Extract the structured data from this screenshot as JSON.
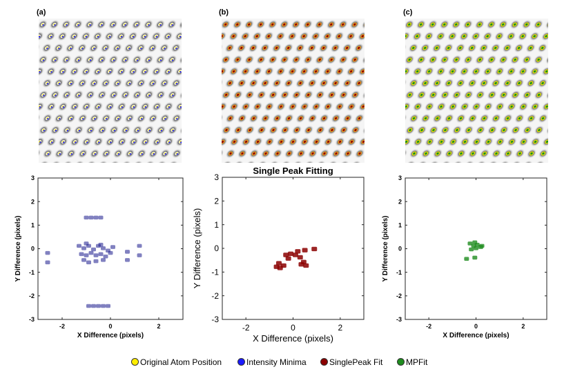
{
  "panels": {
    "a": {
      "label": "(a)"
    },
    "b": {
      "label": "(b)"
    },
    "c": {
      "label": "(c)"
    }
  },
  "legend": {
    "items": [
      {
        "label": "Original Atom Position",
        "color": "#ffee00"
      },
      {
        "label": "Intensity Minima",
        "color": "#1a1aff"
      },
      {
        "label": "SinglePeak Fit",
        "color": "#8b0000"
      },
      {
        "label": "MPFit",
        "color": "#1e8c1e"
      }
    ]
  },
  "chart_data": [
    {
      "type": "scatter",
      "panel": "a",
      "title": "",
      "xlabel": "X Difference (pixels)",
      "ylabel": "Y Difference (pixels)",
      "xlim": [
        -3,
        3
      ],
      "ylim": [
        -3,
        3
      ],
      "xticks": [
        "-2",
        "0",
        "2"
      ],
      "yticks": [
        "3",
        "2",
        "1",
        "0",
        "-1",
        "-2",
        "-3"
      ],
      "color": "#1a1a8c",
      "series": [
        {
          "name": "Intensity Minima",
          "points": [
            [
              -1.3,
              0.1
            ],
            [
              -1.1,
              0.0
            ],
            [
              -0.9,
              0.1
            ],
            [
              -0.7,
              -0.05
            ],
            [
              -0.5,
              0.1
            ],
            [
              -0.3,
              0.0
            ],
            [
              -0.1,
              -0.1
            ],
            [
              0.1,
              0.05
            ],
            [
              -1.2,
              -0.25
            ],
            [
              -1.0,
              -0.3
            ],
            [
              -0.8,
              -0.2
            ],
            [
              -0.6,
              -0.3
            ],
            [
              -0.4,
              -0.25
            ],
            [
              -0.2,
              -0.35
            ],
            [
              0.0,
              -0.2
            ],
            [
              -1.1,
              -0.5
            ],
            [
              -0.9,
              -0.6
            ],
            [
              -0.6,
              -0.55
            ],
            [
              -0.3,
              -0.5
            ],
            [
              -1.0,
              0.2
            ],
            [
              -0.4,
              0.15
            ],
            [
              -1.0,
              1.3
            ],
            [
              -0.8,
              1.3
            ],
            [
              -0.6,
              1.3
            ],
            [
              -0.4,
              1.3
            ],
            [
              -0.9,
              -2.45
            ],
            [
              -0.7,
              -2.45
            ],
            [
              -0.5,
              -2.45
            ],
            [
              -0.3,
              -2.45
            ],
            [
              -0.1,
              -2.45
            ],
            [
              -2.6,
              -0.2
            ],
            [
              -2.6,
              -0.6
            ],
            [
              1.2,
              0.1
            ],
            [
              1.2,
              -0.3
            ],
            [
              0.7,
              -0.15
            ],
            [
              0.7,
              -0.5
            ]
          ]
        }
      ]
    },
    {
      "type": "scatter",
      "panel": "b",
      "title": "Single Peak Fitting",
      "xlabel": "X Difference (pixels)",
      "ylabel": "Y Difference (pixels)",
      "xlim": [
        -3,
        3
      ],
      "ylim": [
        -3,
        3
      ],
      "xticks": [
        "-2",
        "0",
        "2"
      ],
      "yticks": [
        "3",
        "2",
        "1",
        "0",
        "-1",
        "-2",
        "-3"
      ],
      "color": "#8b0000",
      "series": [
        {
          "name": "SinglePeak Fit",
          "points": [
            [
              -0.7,
              -0.8
            ],
            [
              -0.55,
              -0.85
            ],
            [
              -0.4,
              -0.75
            ],
            [
              -0.6,
              -0.65
            ],
            [
              -0.3,
              -0.3
            ],
            [
              -0.1,
              -0.25
            ],
            [
              0.1,
              -0.3
            ],
            [
              -0.2,
              -0.45
            ],
            [
              0.3,
              -0.4
            ],
            [
              0.45,
              -0.6
            ],
            [
              0.55,
              -0.75
            ],
            [
              0.35,
              -0.7
            ],
            [
              0.2,
              -0.15
            ],
            [
              0.5,
              -0.1
            ],
            [
              0.9,
              -0.05
            ]
          ]
        }
      ]
    },
    {
      "type": "scatter",
      "panel": "c",
      "title": "",
      "xlabel": "X Difference (pixels)",
      "ylabel": "Y Difference (pixels)",
      "xlim": [
        -3,
        3
      ],
      "ylim": [
        -3,
        3
      ],
      "xticks": [
        "-2",
        "0",
        "2"
      ],
      "yticks": [
        "3",
        "2",
        "1",
        "0",
        "-1",
        "-2",
        "-3"
      ],
      "color": "#1e8c1e",
      "series": [
        {
          "name": "MPFit",
          "points": [
            [
              -0.25,
              0.2
            ],
            [
              -0.1,
              0.1
            ],
            [
              0.05,
              0.15
            ],
            [
              0.2,
              0.05
            ],
            [
              -0.2,
              -0.05
            ],
            [
              0.0,
              0.0
            ],
            [
              0.25,
              0.1
            ],
            [
              -0.05,
              0.25
            ],
            [
              -0.4,
              -0.45
            ],
            [
              -0.05,
              -0.4
            ]
          ]
        }
      ]
    }
  ]
}
